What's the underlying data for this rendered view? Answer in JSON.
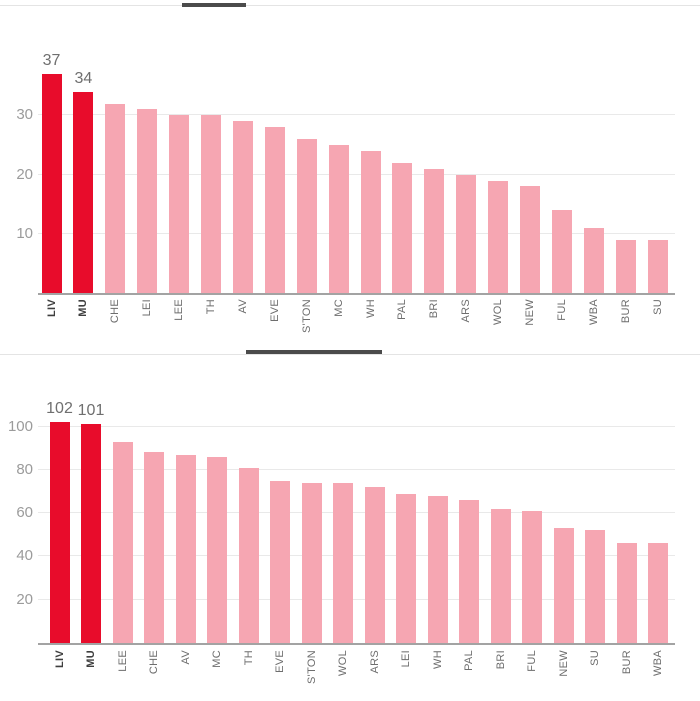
{
  "colors": {
    "highlight_red": "#e80c2b",
    "muted_pink": "#f6a6b2",
    "gridline": "#e9e9e9",
    "axis_line": "#a3a3a3",
    "ytick_text": "#9b9b9b",
    "xlabel_text": "#6e6e6e",
    "xlabel_text_highlight": "#3e3e3e",
    "value_label_text": "#6f6f6f",
    "divider_light": "#e4e4e4",
    "divider_dark": "#4b4b4b"
  },
  "chart_data": [
    {
      "type": "bar",
      "title": "",
      "xlabel": "",
      "ylabel": "",
      "categories": [
        "LIV",
        "MU",
        "CHE",
        "LEI",
        "LEE",
        "TH",
        "AV",
        "EVE",
        "S'TON",
        "MC",
        "WH",
        "PAL",
        "BRI",
        "ARS",
        "WOL",
        "NEW",
        "FUL",
        "WBA",
        "BUR",
        "SU"
      ],
      "values": [
        37,
        34,
        32,
        31,
        30,
        30,
        29,
        28,
        26,
        25,
        24,
        22,
        21,
        20,
        19,
        18,
        14,
        11,
        9,
        9
      ],
      "highlighted_categories": [
        "LIV",
        "MU"
      ],
      "value_labels_shown": [
        "37",
        "34"
      ],
      "yticks": [
        10,
        20,
        30
      ],
      "ylim": [
        0,
        42
      ],
      "grid": true,
      "legend": "none"
    },
    {
      "type": "bar",
      "title": "",
      "xlabel": "",
      "ylabel": "",
      "categories": [
        "LIV",
        "MU",
        "LEE",
        "CHE",
        "AV",
        "MC",
        "TH",
        "EVE",
        "S'TON",
        "WOL",
        "ARS",
        "LEI",
        "WH",
        "PAL",
        "BRI",
        "FUL",
        "NEW",
        "SU",
        "BUR",
        "WBA"
      ],
      "values": [
        102,
        101,
        93,
        88,
        87,
        86,
        81,
        75,
        74,
        74,
        72,
        69,
        68,
        66,
        62,
        61,
        53,
        52,
        46,
        46
      ],
      "highlighted_categories": [
        "LIV",
        "MU"
      ],
      "value_labels_shown": [
        "102",
        "101"
      ],
      "yticks": [
        20,
        40,
        60,
        80,
        100
      ],
      "ylim": [
        0,
        116
      ],
      "grid": true,
      "legend": "none"
    }
  ]
}
